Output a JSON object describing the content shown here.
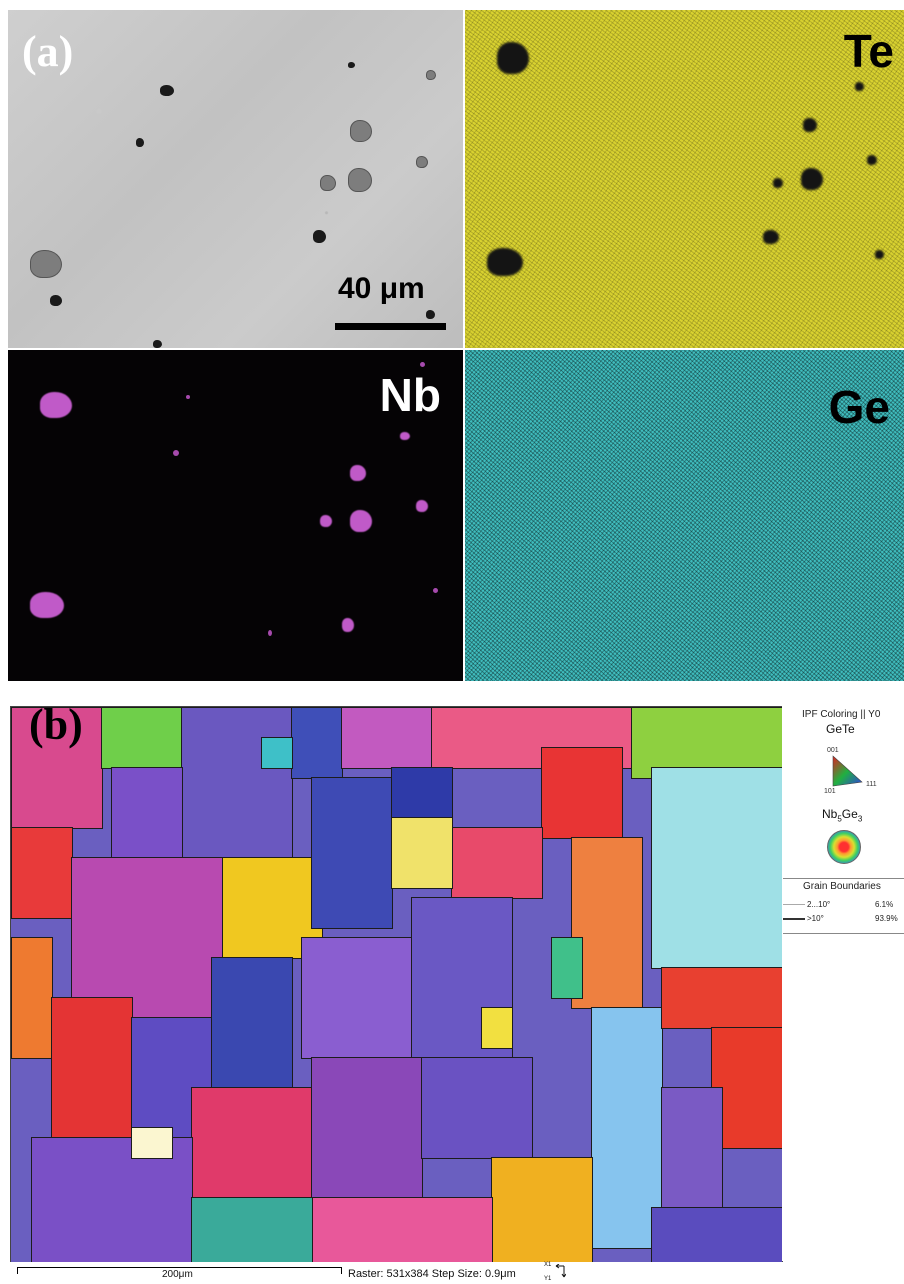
{
  "panel_a": {
    "label": "(a)",
    "scale_bar": "40 μm",
    "maps": {
      "te": "Te",
      "nb": "Nb",
      "ge": "Ge"
    },
    "colors": {
      "sem": "#c8c8c8",
      "te": "#d9d230",
      "nb": "#c05ac8",
      "ge": "#3fbdbe"
    }
  },
  "panel_b": {
    "label": "(b)",
    "legend": {
      "title": "IPF Coloring || Y0",
      "phase1": "GeTe",
      "tri_labels": {
        "top": "001",
        "left": "101",
        "right": "111"
      },
      "phase2_base": "Nb",
      "phase2_sub1": "5",
      "phase2_mid": "Ge",
      "phase2_sub2": "3",
      "boundaries_title": "Grain Boundaries",
      "boundaries": [
        {
          "range": "2...10°",
          "value": "6.1%"
        },
        {
          "range": ">10°",
          "value": "93.9%"
        }
      ]
    },
    "scale_bar": "200μm",
    "raster_info": "Raster: 531x384   Step Size: 0.9μm",
    "axes": {
      "x": "X1",
      "y": "Y1"
    }
  }
}
